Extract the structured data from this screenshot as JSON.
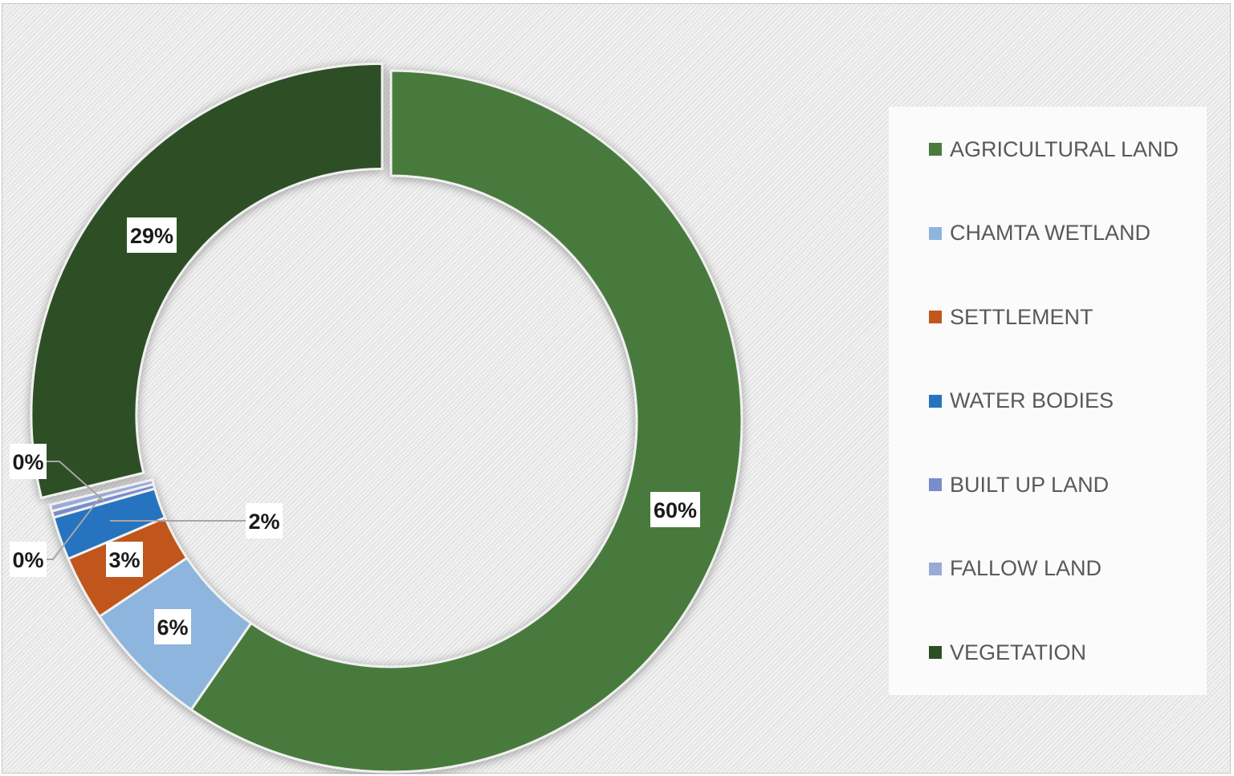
{
  "chart_data": {
    "type": "pie",
    "donut": true,
    "categories": [
      "AGRICULTURAL LAND",
      "CHAMTA WETLAND",
      "SETTLEMENT",
      "WATER BODIES",
      "BUILT UP LAND",
      "FALLOW LAND",
      "VEGETATION"
    ],
    "values": [
      60,
      6,
      3,
      2,
      0.3,
      0.3,
      29
    ],
    "data_labels": [
      "60%",
      "6%",
      "3%",
      "2%",
      "0%",
      "0%",
      "29%"
    ],
    "colors": [
      "#4a7a3e",
      "#8db5dd",
      "#c0571d",
      "#2873c0",
      "#7a8ccc",
      "#9aaad8",
      "#2d4f25"
    ],
    "exploded_slice": "VEGETATION",
    "legend_position": "right"
  }
}
